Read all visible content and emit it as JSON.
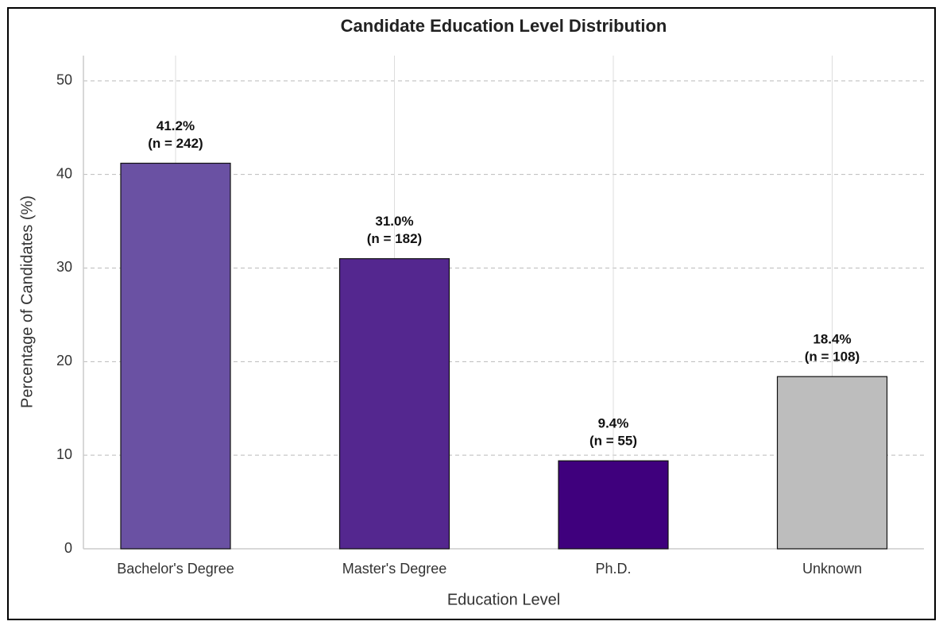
{
  "chart_data": {
    "type": "bar",
    "title": "Candidate Education Level Distribution",
    "x_label": "Education Level",
    "y_label": "Percentage of Candidates (%)",
    "categories": [
      "Bachelor's Degree",
      "Master's Degree",
      "Ph.D.",
      "Unknown"
    ],
    "values": [
      41.2,
      31.0,
      9.4,
      18.4
    ],
    "value_labels": [
      [
        "41.2%",
        "(n = 242)"
      ],
      [
        "31.0%",
        "(n = 182)"
      ],
      [
        "9.4%",
        "(n = 55)"
      ],
      [
        "18.4%",
        "(n = 108)"
      ]
    ],
    "colors": [
      "#6a51a3",
      "#54278f",
      "#3f007d",
      "#bdbdbd"
    ],
    "ylim": [
      0,
      52.7
    ],
    "yticks": [
      0,
      10,
      20,
      30,
      40,
      50
    ],
    "grid": true
  }
}
